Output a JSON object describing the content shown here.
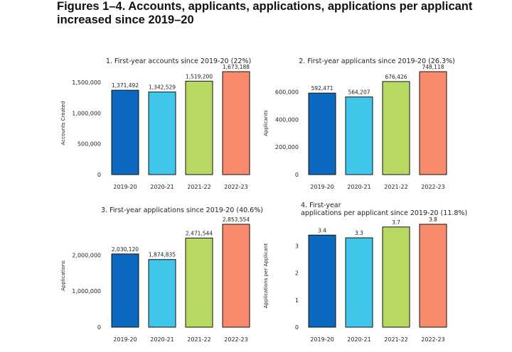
{
  "page": {
    "title": "Figures 1–4. Accounts, applicants, applications, applications per applicant increased since 2019–20"
  },
  "colors": [
    "#0b6abf",
    "#40c6ea",
    "#b7d962",
    "#f98b6c"
  ],
  "chart_data": [
    {
      "type": "bar",
      "title": "1. First-year accounts since 2019-20 (22%)",
      "title_lines": [
        "1. First-year accounts since 2019-20 (22%)"
      ],
      "ylabel": "Accounts Created",
      "categories": [
        "2019-20",
        "2020-21",
        "2021-22",
        "2022-23"
      ],
      "values": [
        1371492,
        1342529,
        1519200,
        1673188
      ],
      "data_labels": [
        "1,371,492",
        "1,342,529",
        "1,519,200",
        "1,673,188"
      ],
      "ylim": [
        0,
        1673188
      ],
      "yticks": [
        0,
        500000,
        1000000,
        1500000
      ],
      "ytick_labels": [
        "0",
        "500,000",
        "1,000,000",
        "1,500,000"
      ]
    },
    {
      "type": "bar",
      "title": "2. First-year applicants since 2019-20 (26.3%)",
      "title_lines": [
        "2. First-year applicants since 2019-20 (26.3%)"
      ],
      "ylabel": "Applicants",
      "categories": [
        "2019-20",
        "2020-21",
        "2021-22",
        "2022-23"
      ],
      "values": [
        592471,
        564207,
        676426,
        748118
      ],
      "data_labels": [
        "592,471",
        "564,207",
        "676,426",
        "748,118"
      ],
      "ylim": [
        0,
        748118
      ],
      "yticks": [
        0,
        200000,
        400000,
        600000
      ],
      "ytick_labels": [
        "0",
        "200,000",
        "400,000",
        "600,000"
      ]
    },
    {
      "type": "bar",
      "title": "3. First-year applications since 2019-20 (40.6%)",
      "title_lines": [
        "3. First-year applications since 2019-20 (40.6%)"
      ],
      "ylabel": "Applications",
      "categories": [
        "2019-20",
        "2020-21",
        "2021-22",
        "2022-23"
      ],
      "values": [
        2030120,
        1874835,
        2471544,
        2853554
      ],
      "data_labels": [
        "2,030,120",
        "1,874,835",
        "2,471,544",
        "2,853,554"
      ],
      "ylim": [
        0,
        2853554
      ],
      "yticks": [
        0,
        1000000,
        2000000
      ],
      "ytick_labels": [
        "0",
        "1,000,000",
        "2,000,000"
      ]
    },
    {
      "type": "bar",
      "title": "4. First-year applications per applicant since 2019-20 (11.8%)",
      "title_lines": [
        "4. First-year",
        "applications per applicant since 2019-20 (11.8%)"
      ],
      "ylabel": "Applications per Applicant",
      "categories": [
        "2019-20",
        "2020-21",
        "2021-22",
        "2022-23"
      ],
      "values": [
        3.4,
        3.3,
        3.7,
        3.8
      ],
      "data_labels": [
        "3.4",
        "3.3",
        "3.7",
        "3.8"
      ],
      "ylim": [
        0,
        3.8
      ],
      "yticks": [
        0,
        1,
        2,
        3
      ],
      "ytick_labels": [
        "0",
        "1",
        "2",
        "3"
      ]
    }
  ]
}
